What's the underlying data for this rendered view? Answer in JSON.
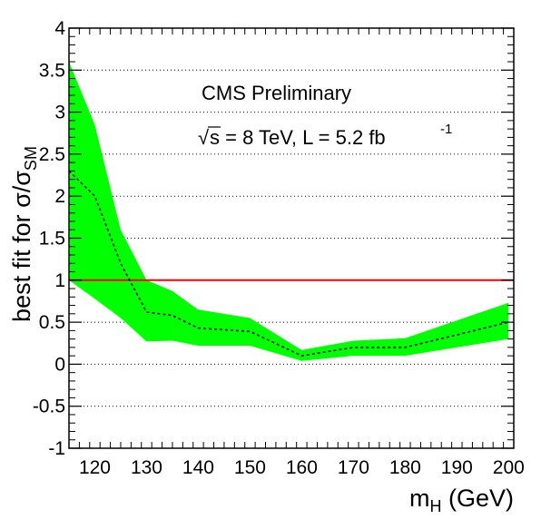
{
  "chart_data": {
    "type": "line",
    "x_values": [
      115,
      120,
      125,
      130,
      135,
      140,
      150,
      160,
      170,
      180,
      190,
      200
    ],
    "xlim": [
      115,
      201
    ],
    "ylim": [
      -1,
      4
    ],
    "x_ticks": [
      120,
      130,
      140,
      150,
      160,
      170,
      180,
      190,
      200
    ],
    "y_ticks": [
      -1,
      -0.5,
      0,
      0.5,
      1,
      1.5,
      2,
      2.5,
      3,
      3.5,
      4
    ],
    "x_tick_labels": [
      "120",
      "130",
      "140",
      "150",
      "160",
      "170",
      "180",
      "190",
      "200"
    ],
    "y_tick_labels": [
      "-1",
      "-0.5",
      "0",
      "0.5",
      "1",
      "1.5",
      "2",
      "2.5",
      "3",
      "3.5",
      "4"
    ],
    "xlabel": {
      "main": "m",
      "sub": "H",
      "unit": " (GeV)"
    },
    "ylabel": {
      "main": "best fit for σ/σ",
      "sub": "SM"
    },
    "grid": "horizontal dotted",
    "series": [
      {
        "values": [
          2.3,
          2.0,
          1.2,
          0.62,
          0.58,
          0.43,
          0.39,
          0.1,
          0.2,
          0.2,
          0.35,
          0.5
        ]
      }
    ],
    "band": {
      "upper": [
        3.6,
        2.85,
        1.6,
        1.0,
        0.87,
        0.65,
        0.55,
        0.17,
        0.28,
        0.31,
        0.52,
        0.73
      ],
      "lower": [
        1.0,
        0.78,
        0.55,
        0.27,
        0.28,
        0.22,
        0.22,
        0.04,
        0.1,
        0.1,
        0.2,
        0.3
      ]
    },
    "reference_line": {
      "y": 1
    },
    "colors": {
      "band": "#00ff00",
      "reference": "#ff0000",
      "line": "#000000"
    },
    "annotations": {
      "experiment": "CMS Preliminary",
      "sqrt_s": "s = 8 TeV, L = 5.2 fb",
      "lumi_exponent": "-1"
    }
  }
}
